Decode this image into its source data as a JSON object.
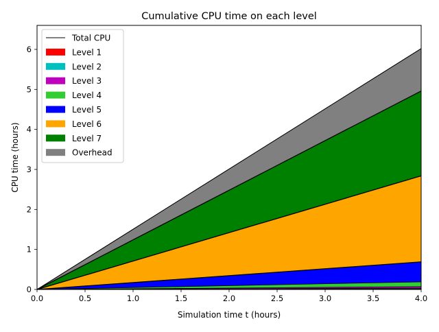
{
  "chart_data": {
    "type": "area",
    "stacked": true,
    "title": "Cumulative CPU time on each level",
    "xlabel": "Simulation time t (hours)",
    "ylabel": "CPU time (hours)",
    "xlim": [
      0,
      4
    ],
    "ylim": [
      0,
      6.6
    ],
    "xticks": [
      0.0,
      0.5,
      1.0,
      1.5,
      2.0,
      2.5,
      3.0,
      3.5,
      4.0
    ],
    "xtick_labels": [
      "0.0",
      "0.5",
      "1.0",
      "1.5",
      "2.0",
      "2.5",
      "3.0",
      "3.5",
      "4.0"
    ],
    "yticks": [
      0,
      1,
      2,
      3,
      4,
      5,
      6
    ],
    "ytick_labels": [
      "0",
      "1",
      "2",
      "3",
      "4",
      "5",
      "6"
    ],
    "grid": false,
    "legend_position": "upper-left",
    "x": [
      0,
      4
    ],
    "total": {
      "name": "Total CPU",
      "color": "#000000",
      "values": [
        0,
        6.02
      ]
    },
    "series": [
      {
        "name": "Level 1",
        "color": "#ff0000",
        "values": [
          0,
          0.015
        ]
      },
      {
        "name": "Level 2",
        "color": "#00bfbf",
        "values": [
          0,
          0.015
        ]
      },
      {
        "name": "Level 3",
        "color": "#bf00bf",
        "values": [
          0,
          0.04
        ]
      },
      {
        "name": "Level 4",
        "color": "#32cd32",
        "values": [
          0,
          0.12
        ]
      },
      {
        "name": "Level 5",
        "color": "#0000ff",
        "values": [
          0,
          0.5
        ]
      },
      {
        "name": "Level 6",
        "color": "#ffa500",
        "values": [
          0,
          2.15
        ]
      },
      {
        "name": "Level 7",
        "color": "#008000",
        "values": [
          0,
          2.12
        ]
      },
      {
        "name": "Overhead",
        "color": "#808080",
        "values": [
          0,
          1.06
        ]
      }
    ]
  }
}
